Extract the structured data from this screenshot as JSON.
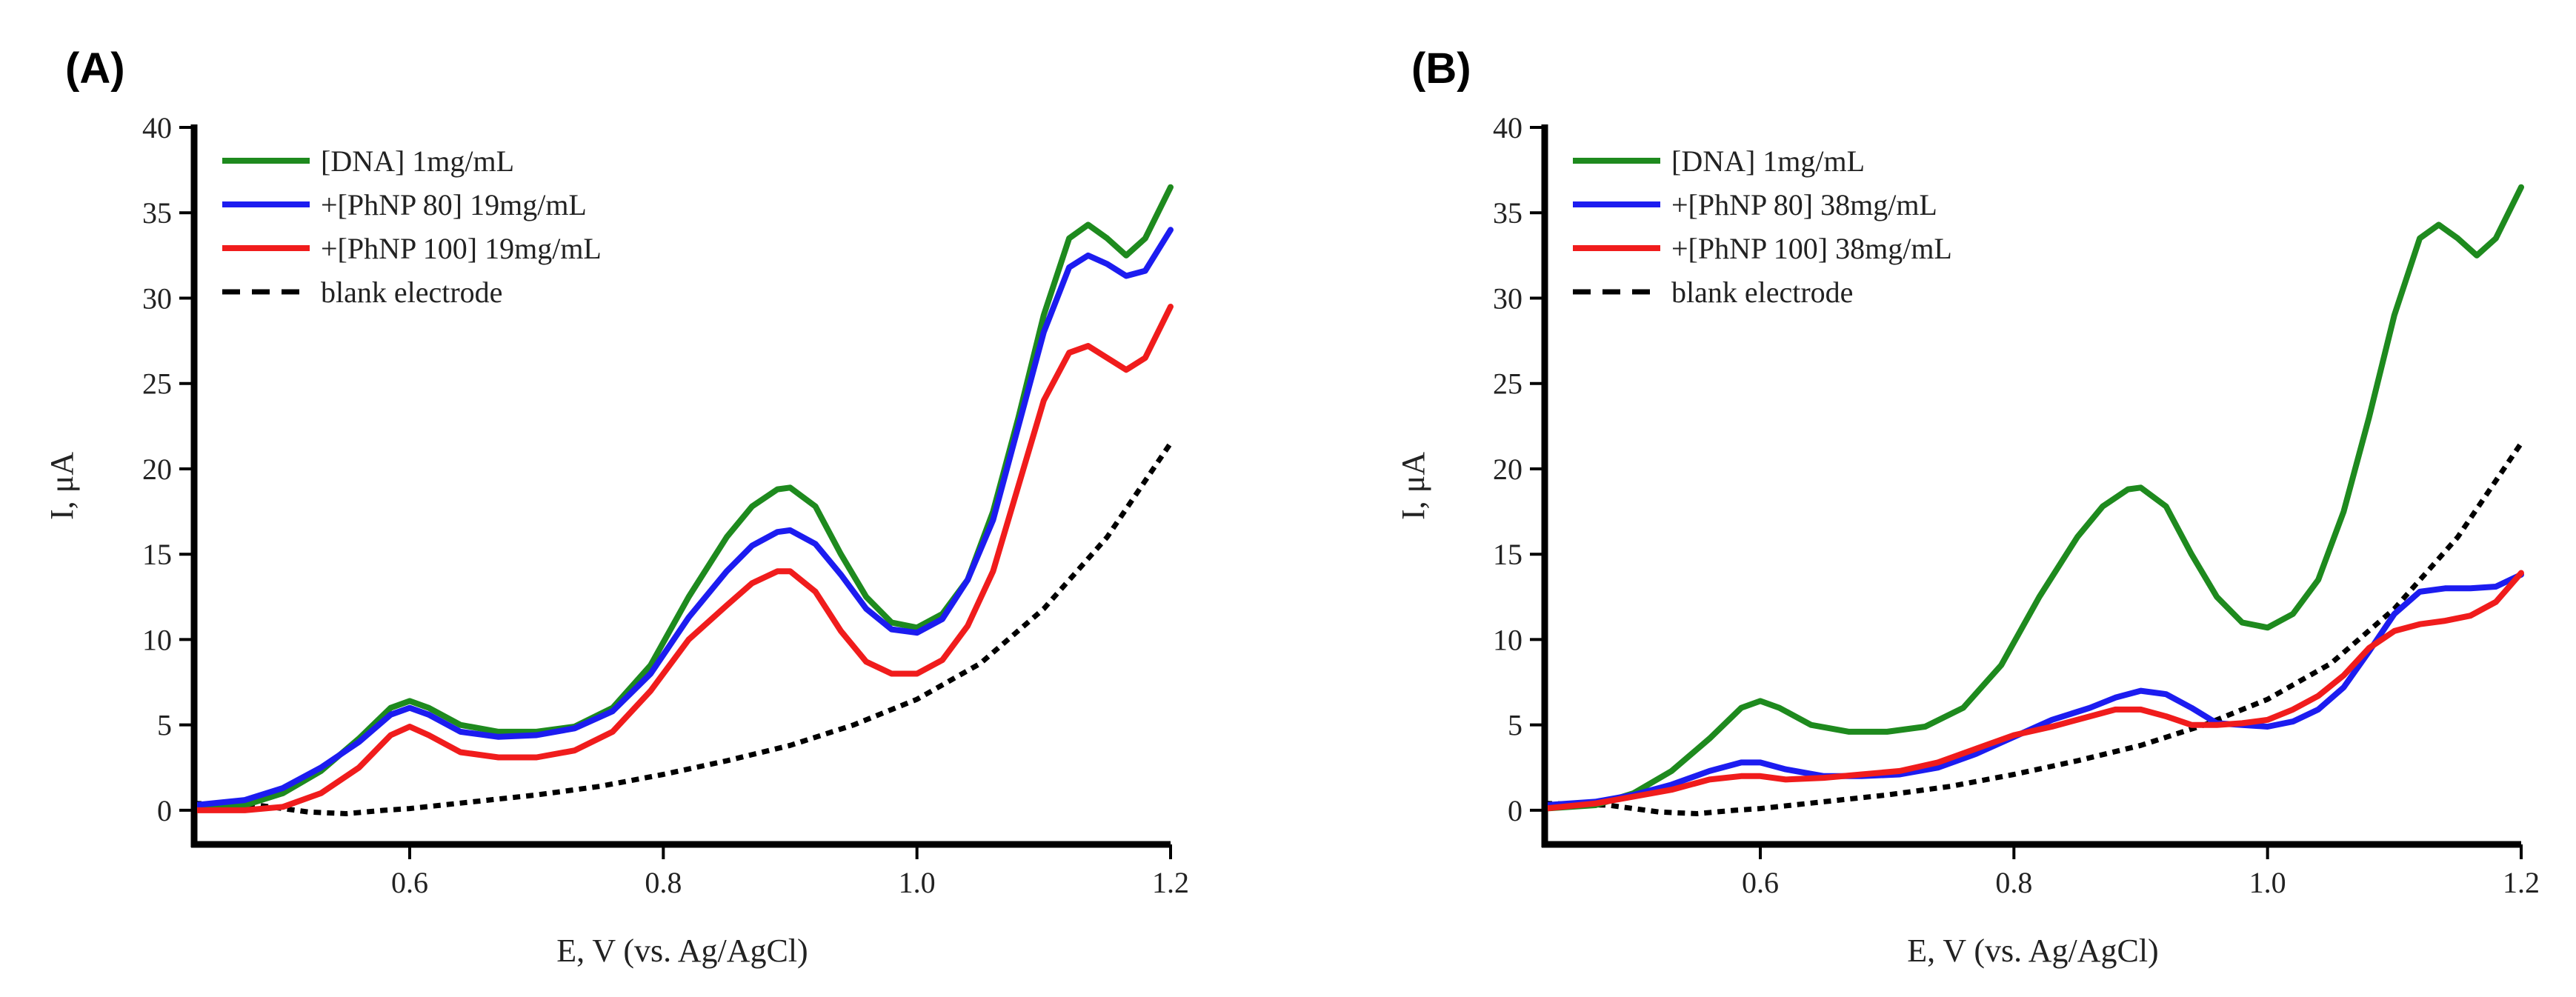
{
  "chart_data": [
    {
      "type": "line",
      "panel_label": "(A)",
      "xlabel": "E, V (vs. Ag/AgCl)",
      "ylabel": "I, μA",
      "xlim": [
        0.43,
        1.2
      ],
      "ylim": [
        -2,
        40
      ],
      "xticks": [
        0.6,
        0.8,
        1.0,
        1.2
      ],
      "xtick_labels": [
        "0.6",
        "0.8",
        "1.0",
        "1.2"
      ],
      "yticks": [
        0,
        5,
        10,
        15,
        20,
        25,
        30,
        35,
        40
      ],
      "ytick_labels": [
        "0",
        "5",
        "10",
        "15",
        "20",
        "25",
        "30",
        "35",
        "40"
      ],
      "legend_position": "top-left",
      "series": [
        {
          "name": "[DNA] 1mg/mL",
          "color": "#1e8a1e",
          "style": "solid",
          "points": [
            [
              0.43,
              0.1
            ],
            [
              0.47,
              0.3
            ],
            [
              0.5,
              1.0
            ],
            [
              0.53,
              2.3
            ],
            [
              0.56,
              4.2
            ],
            [
              0.585,
              6.0
            ],
            [
              0.6,
              6.4
            ],
            [
              0.615,
              6.0
            ],
            [
              0.64,
              5.0
            ],
            [
              0.67,
              4.6
            ],
            [
              0.7,
              4.6
            ],
            [
              0.73,
              4.9
            ],
            [
              0.76,
              6.0
            ],
            [
              0.79,
              8.5
            ],
            [
              0.82,
              12.5
            ],
            [
              0.85,
              16.0
            ],
            [
              0.87,
              17.8
            ],
            [
              0.89,
              18.8
            ],
            [
              0.9,
              18.9
            ],
            [
              0.92,
              17.8
            ],
            [
              0.94,
              15.0
            ],
            [
              0.96,
              12.5
            ],
            [
              0.98,
              11.0
            ],
            [
              1.0,
              10.7
            ],
            [
              1.02,
              11.5
            ],
            [
              1.04,
              13.5
            ],
            [
              1.06,
              17.5
            ],
            [
              1.08,
              23.0
            ],
            [
              1.1,
              29.0
            ],
            [
              1.12,
              33.5
            ],
            [
              1.135,
              34.3
            ],
            [
              1.15,
              33.5
            ],
            [
              1.165,
              32.5
            ],
            [
              1.18,
              33.5
            ],
            [
              1.2,
              36.5
            ]
          ]
        },
        {
          "name": "+[PhNP 80] 19mg/mL",
          "color": "#1c1cf0",
          "style": "solid",
          "points": [
            [
              0.43,
              0.3
            ],
            [
              0.47,
              0.6
            ],
            [
              0.5,
              1.3
            ],
            [
              0.53,
              2.5
            ],
            [
              0.56,
              4.0
            ],
            [
              0.585,
              5.6
            ],
            [
              0.6,
              6.0
            ],
            [
              0.615,
              5.6
            ],
            [
              0.64,
              4.6
            ],
            [
              0.67,
              4.3
            ],
            [
              0.7,
              4.4
            ],
            [
              0.73,
              4.8
            ],
            [
              0.76,
              5.8
            ],
            [
              0.79,
              8.0
            ],
            [
              0.82,
              11.3
            ],
            [
              0.85,
              14.0
            ],
            [
              0.87,
              15.5
            ],
            [
              0.89,
              16.3
            ],
            [
              0.9,
              16.4
            ],
            [
              0.92,
              15.6
            ],
            [
              0.94,
              13.8
            ],
            [
              0.96,
              11.8
            ],
            [
              0.98,
              10.6
            ],
            [
              1.0,
              10.4
            ],
            [
              1.02,
              11.2
            ],
            [
              1.04,
              13.5
            ],
            [
              1.06,
              17.0
            ],
            [
              1.08,
              22.5
            ],
            [
              1.1,
              28.0
            ],
            [
              1.12,
              31.8
            ],
            [
              1.135,
              32.5
            ],
            [
              1.15,
              32.0
            ],
            [
              1.165,
              31.3
            ],
            [
              1.18,
              31.6
            ],
            [
              1.2,
              34.0
            ]
          ]
        },
        {
          "name": "+[PhNP 100] 19mg/mL",
          "color": "#f01c1c",
          "style": "solid",
          "points": [
            [
              0.43,
              0.0
            ],
            [
              0.47,
              0.0
            ],
            [
              0.5,
              0.2
            ],
            [
              0.53,
              1.0
            ],
            [
              0.56,
              2.5
            ],
            [
              0.585,
              4.4
            ],
            [
              0.6,
              4.9
            ],
            [
              0.615,
              4.4
            ],
            [
              0.64,
              3.4
            ],
            [
              0.67,
              3.1
            ],
            [
              0.7,
              3.1
            ],
            [
              0.73,
              3.5
            ],
            [
              0.76,
              4.6
            ],
            [
              0.79,
              7.0
            ],
            [
              0.82,
              10.0
            ],
            [
              0.85,
              12.0
            ],
            [
              0.87,
              13.3
            ],
            [
              0.89,
              14.0
            ],
            [
              0.9,
              14.0
            ],
            [
              0.92,
              12.8
            ],
            [
              0.94,
              10.5
            ],
            [
              0.96,
              8.7
            ],
            [
              0.98,
              8.0
            ],
            [
              1.0,
              8.0
            ],
            [
              1.02,
              8.8
            ],
            [
              1.04,
              10.8
            ],
            [
              1.06,
              14.0
            ],
            [
              1.08,
              19.0
            ],
            [
              1.1,
              24.0
            ],
            [
              1.12,
              26.8
            ],
            [
              1.135,
              27.2
            ],
            [
              1.15,
              26.5
            ],
            [
              1.165,
              25.8
            ],
            [
              1.18,
              26.5
            ],
            [
              1.2,
              29.5
            ]
          ]
        },
        {
          "name": "blank electrode",
          "color": "#000000",
          "style": "dashed",
          "points": [
            [
              0.43,
              0.4
            ],
            [
              0.48,
              0.3
            ],
            [
              0.52,
              -0.1
            ],
            [
              0.55,
              -0.2
            ],
            [
              0.58,
              0.0
            ],
            [
              0.6,
              0.1
            ],
            [
              0.65,
              0.5
            ],
            [
              0.7,
              0.9
            ],
            [
              0.75,
              1.4
            ],
            [
              0.8,
              2.1
            ],
            [
              0.85,
              2.9
            ],
            [
              0.9,
              3.8
            ],
            [
              0.95,
              5.0
            ],
            [
              1.0,
              6.5
            ],
            [
              1.05,
              8.6
            ],
            [
              1.1,
              11.8
            ],
            [
              1.15,
              16.0
            ],
            [
              1.2,
              21.5
            ]
          ]
        }
      ]
    },
    {
      "type": "line",
      "panel_label": "(B)",
      "xlabel": "E, V (vs. Ag/AgCl)",
      "ylabel": "I, μA",
      "xlim": [
        0.43,
        1.2
      ],
      "ylim": [
        -2,
        40
      ],
      "xticks": [
        0.6,
        0.8,
        1.0,
        1.2
      ],
      "xtick_labels": [
        "0.6",
        "0.8",
        "1.0",
        "1.2"
      ],
      "yticks": [
        0,
        5,
        10,
        15,
        20,
        25,
        30,
        35,
        40
      ],
      "ytick_labels": [
        "0",
        "5",
        "10",
        "15",
        "20",
        "25",
        "30",
        "35",
        "40"
      ],
      "legend_position": "top-left",
      "series": [
        {
          "name": "[DNA] 1mg/mL",
          "color": "#1e8a1e",
          "style": "solid",
          "points": [
            [
              0.43,
              0.1
            ],
            [
              0.47,
              0.3
            ],
            [
              0.5,
              1.0
            ],
            [
              0.53,
              2.3
            ],
            [
              0.56,
              4.2
            ],
            [
              0.585,
              6.0
            ],
            [
              0.6,
              6.4
            ],
            [
              0.615,
              6.0
            ],
            [
              0.64,
              5.0
            ],
            [
              0.67,
              4.6
            ],
            [
              0.7,
              4.6
            ],
            [
              0.73,
              4.9
            ],
            [
              0.76,
              6.0
            ],
            [
              0.79,
              8.5
            ],
            [
              0.82,
              12.5
            ],
            [
              0.85,
              16.0
            ],
            [
              0.87,
              17.8
            ],
            [
              0.89,
              18.8
            ],
            [
              0.9,
              18.9
            ],
            [
              0.92,
              17.8
            ],
            [
              0.94,
              15.0
            ],
            [
              0.96,
              12.5
            ],
            [
              0.98,
              11.0
            ],
            [
              1.0,
              10.7
            ],
            [
              1.02,
              11.5
            ],
            [
              1.04,
              13.5
            ],
            [
              1.06,
              17.5
            ],
            [
              1.08,
              23.0
            ],
            [
              1.1,
              29.0
            ],
            [
              1.12,
              33.5
            ],
            [
              1.135,
              34.3
            ],
            [
              1.15,
              33.5
            ],
            [
              1.165,
              32.5
            ],
            [
              1.18,
              33.5
            ],
            [
              1.2,
              36.5
            ]
          ]
        },
        {
          "name": "+[PhNP 80] 38mg/mL",
          "color": "#1c1cf0",
          "style": "solid",
          "points": [
            [
              0.43,
              0.3
            ],
            [
              0.47,
              0.5
            ],
            [
              0.5,
              0.9
            ],
            [
              0.53,
              1.5
            ],
            [
              0.56,
              2.3
            ],
            [
              0.585,
              2.8
            ],
            [
              0.6,
              2.8
            ],
            [
              0.62,
              2.4
            ],
            [
              0.65,
              2.0
            ],
            [
              0.68,
              2.0
            ],
            [
              0.71,
              2.1
            ],
            [
              0.74,
              2.5
            ],
            [
              0.77,
              3.3
            ],
            [
              0.8,
              4.3
            ],
            [
              0.83,
              5.3
            ],
            [
              0.86,
              6.0
            ],
            [
              0.88,
              6.6
            ],
            [
              0.9,
              7.0
            ],
            [
              0.92,
              6.8
            ],
            [
              0.94,
              6.0
            ],
            [
              0.96,
              5.1
            ],
            [
              0.98,
              5.0
            ],
            [
              1.0,
              4.9
            ],
            [
              1.02,
              5.2
            ],
            [
              1.04,
              5.9
            ],
            [
              1.06,
              7.2
            ],
            [
              1.08,
              9.3
            ],
            [
              1.1,
              11.5
            ],
            [
              1.12,
              12.8
            ],
            [
              1.14,
              13.0
            ],
            [
              1.16,
              13.0
            ],
            [
              1.18,
              13.1
            ],
            [
              1.2,
              13.8
            ]
          ]
        },
        {
          "name": "+[PhNP 100] 38mg/mL",
          "color": "#f01c1c",
          "style": "solid",
          "points": [
            [
              0.43,
              0.1
            ],
            [
              0.47,
              0.4
            ],
            [
              0.5,
              0.8
            ],
            [
              0.53,
              1.2
            ],
            [
              0.56,
              1.8
            ],
            [
              0.585,
              2.0
            ],
            [
              0.6,
              2.0
            ],
            [
              0.62,
              1.8
            ],
            [
              0.65,
              1.9
            ],
            [
              0.68,
              2.1
            ],
            [
              0.71,
              2.3
            ],
            [
              0.74,
              2.8
            ],
            [
              0.77,
              3.6
            ],
            [
              0.8,
              4.4
            ],
            [
              0.83,
              4.9
            ],
            [
              0.86,
              5.5
            ],
            [
              0.88,
              5.9
            ],
            [
              0.9,
              5.9
            ],
            [
              0.92,
              5.5
            ],
            [
              0.94,
              5.0
            ],
            [
              0.96,
              5.0
            ],
            [
              0.98,
              5.1
            ],
            [
              1.0,
              5.3
            ],
            [
              1.02,
              5.9
            ],
            [
              1.04,
              6.7
            ],
            [
              1.06,
              7.9
            ],
            [
              1.08,
              9.5
            ],
            [
              1.1,
              10.5
            ],
            [
              1.12,
              10.9
            ],
            [
              1.14,
              11.1
            ],
            [
              1.16,
              11.4
            ],
            [
              1.18,
              12.2
            ],
            [
              1.2,
              13.9
            ]
          ]
        },
        {
          "name": "blank electrode",
          "color": "#000000",
          "style": "dashed",
          "points": [
            [
              0.43,
              0.4
            ],
            [
              0.48,
              0.3
            ],
            [
              0.52,
              -0.1
            ],
            [
              0.55,
              -0.2
            ],
            [
              0.58,
              0.0
            ],
            [
              0.6,
              0.1
            ],
            [
              0.65,
              0.5
            ],
            [
              0.7,
              0.9
            ],
            [
              0.75,
              1.4
            ],
            [
              0.8,
              2.1
            ],
            [
              0.85,
              2.9
            ],
            [
              0.9,
              3.8
            ],
            [
              0.95,
              5.0
            ],
            [
              1.0,
              6.5
            ],
            [
              1.05,
              8.6
            ],
            [
              1.1,
              11.8
            ],
            [
              1.15,
              16.0
            ],
            [
              1.2,
              21.5
            ]
          ]
        }
      ]
    }
  ]
}
